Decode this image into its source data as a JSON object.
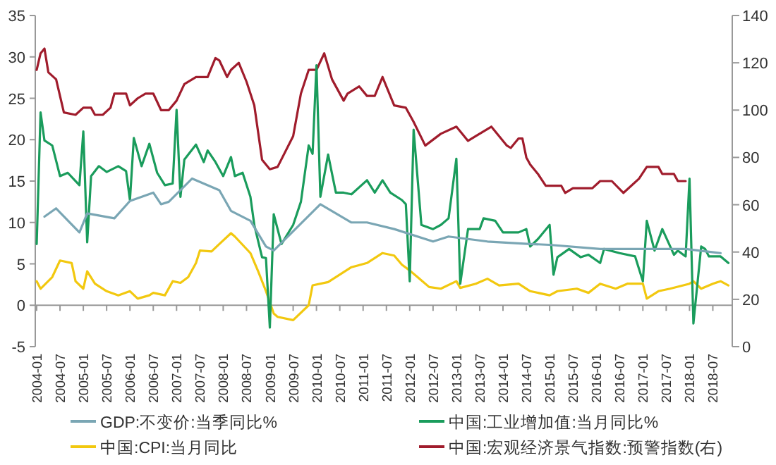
{
  "chart_data": {
    "type": "line",
    "legend": "bottom",
    "line_style": "solid",
    "marker": "none",
    "xlim": [
      "2004-01",
      "2018-12"
    ],
    "xticks": [
      "2004-01",
      "2004-07",
      "2005-01",
      "2005-07",
      "2006-01",
      "2006-07",
      "2007-01",
      "2007-07",
      "2008-01",
      "2008-07",
      "2009-01",
      "2009-07",
      "2010-01",
      "2010-07",
      "2011-01",
      "2011-07",
      "2012-01",
      "2012-07",
      "2013-01",
      "2013-07",
      "2014-01",
      "2014-07",
      "2015-01",
      "2015-07",
      "2016-01",
      "2016-07",
      "2017-01",
      "2017-07",
      "2018-01",
      "2018-07"
    ],
    "ylim": [
      -5,
      35
    ],
    "yticks": [
      -5,
      0,
      5,
      10,
      15,
      20,
      25,
      30,
      35
    ],
    "y2lim": [
      0,
      140
    ],
    "y2ticks": [
      0,
      20,
      40,
      60,
      80,
      100,
      120,
      140
    ],
    "series": [
      {
        "name": "GDP:不变价:当季同比%",
        "color": "#7aa6b4",
        "x": [
          "2004-03",
          "2004-06",
          "2004-12",
          "2005-02",
          "2005-09",
          "2006-01",
          "2006-07",
          "2006-09",
          "2006-11",
          "2007-05",
          "2007-12",
          "2008-03",
          "2008-08",
          "2008-12",
          "2009-02",
          "2010-02",
          "2010-10",
          "2011-02",
          "2011-09",
          "2012-07",
          "2012-11",
          "2013-09",
          "2014-08",
          "2015-01",
          "2016-02",
          "2017-12",
          "2018-09"
        ],
        "values": [
          10.7,
          11.7,
          8.8,
          11.1,
          10.5,
          12.6,
          13.6,
          12.2,
          12.5,
          15.3,
          13.9,
          11.4,
          10.2,
          7.1,
          6.6,
          12.2,
          10.0,
          10.0,
          9.2,
          7.7,
          8.3,
          7.7,
          7.4,
          7.3,
          6.8,
          6.8,
          6.3
        ]
      },
      {
        "name": "中国:工业增加值:当月同比%",
        "color": "#1a9c5c",
        "x": [
          "2004-01",
          "2004-02",
          "2004-03",
          "2004-05",
          "2004-07",
          "2004-09",
          "2004-12",
          "2005-01",
          "2005-02",
          "2005-03",
          "2005-05",
          "2005-07",
          "2005-10",
          "2005-12",
          "2006-01",
          "2006-02",
          "2006-04",
          "2006-06",
          "2006-08",
          "2006-10",
          "2006-12",
          "2007-01",
          "2007-02",
          "2007-03",
          "2007-06",
          "2007-08",
          "2007-09",
          "2007-11",
          "2008-01",
          "2008-03",
          "2008-04",
          "2008-06",
          "2008-08",
          "2008-09",
          "2008-11",
          "2008-12",
          "2009-01",
          "2009-02",
          "2009-04",
          "2009-07",
          "2009-09",
          "2009-11",
          "2009-12",
          "2010-01",
          "2010-02",
          "2010-04",
          "2010-06",
          "2010-08",
          "2010-10",
          "2011-02",
          "2011-04",
          "2011-06",
          "2011-08",
          "2011-11",
          "2011-12",
          "2012-01",
          "2012-02",
          "2012-04",
          "2012-07",
          "2012-09",
          "2012-11",
          "2013-01",
          "2013-02",
          "2013-04",
          "2013-07",
          "2013-08",
          "2013-11",
          "2014-01",
          "2014-05",
          "2014-07",
          "2014-08",
          "2014-10",
          "2015-01",
          "2015-02",
          "2015-03",
          "2015-06",
          "2015-09",
          "2015-11",
          "2016-02",
          "2016-03",
          "2016-07",
          "2016-11",
          "2017-01",
          "2017-02",
          "2017-04",
          "2017-06",
          "2017-09",
          "2017-10",
          "2017-12",
          "2018-01",
          "2018-02",
          "2018-04",
          "2018-05",
          "2018-06",
          "2018-09",
          "2018-11"
        ],
        "values": [
          7.4,
          23.3,
          19.9,
          19.3,
          15.6,
          16.0,
          14.5,
          21.0,
          7.6,
          15.6,
          16.8,
          16.1,
          16.8,
          16.2,
          12.7,
          20.2,
          16.8,
          19.5,
          16.0,
          14.5,
          14.7,
          23.6,
          13.1,
          17.6,
          19.4,
          17.3,
          18.7,
          17.3,
          15.6,
          17.9,
          15.6,
          16.0,
          13.1,
          9.7,
          5.8,
          5.7,
          -2.7,
          11.0,
          7.4,
          9.7,
          12.5,
          19.3,
          18.3,
          29.0,
          13.1,
          18.2,
          13.6,
          13.6,
          13.4,
          15.1,
          13.6,
          15.1,
          13.6,
          12.7,
          12.2,
          2.9,
          21.2,
          9.7,
          9.2,
          9.7,
          10.5,
          17.7,
          2.6,
          9.2,
          9.2,
          10.5,
          10.2,
          8.8,
          8.8,
          9.2,
          7.1,
          8.0,
          9.7,
          3.7,
          5.8,
          6.8,
          5.8,
          6.1,
          5.1,
          6.8,
          6.3,
          5.9,
          2.9,
          10.2,
          6.6,
          9.2,
          6.1,
          6.6,
          5.9,
          15.3,
          -2.2,
          7.1,
          6.8,
          5.9,
          5.9,
          5.1
        ]
      },
      {
        "name": "中国:CPI:当月同比",
        "color": "#f2c80f",
        "x": [
          "2004-01",
          "2004-02",
          "2004-05",
          "2004-07",
          "2004-10",
          "2004-11",
          "2005-01",
          "2005-02",
          "2005-04",
          "2005-07",
          "2005-10",
          "2006-01",
          "2006-03",
          "2006-06",
          "2006-07",
          "2006-10",
          "2006-12",
          "2007-02",
          "2007-04",
          "2007-06",
          "2007-07",
          "2007-10",
          "2007-12",
          "2008-03",
          "2008-04",
          "2008-08",
          "2008-10",
          "2008-12",
          "2009-02",
          "2009-03",
          "2009-07",
          "2009-11",
          "2009-12",
          "2010-04",
          "2010-10",
          "2011-02",
          "2011-06",
          "2011-09",
          "2011-11",
          "2012-01",
          "2012-03",
          "2012-06",
          "2012-09",
          "2013-01",
          "2013-02",
          "2013-06",
          "2013-09",
          "2013-12",
          "2014-05",
          "2014-08",
          "2015-01",
          "2015-03",
          "2015-08",
          "2015-11",
          "2016-02",
          "2016-06",
          "2016-09",
          "2017-01",
          "2017-02",
          "2017-05",
          "2017-08",
          "2018-01",
          "2018-02",
          "2018-04",
          "2018-07",
          "2018-09",
          "2018-11"
        ],
        "values": [
          2.9,
          2.0,
          3.4,
          5.4,
          5.1,
          2.9,
          2.0,
          4.1,
          2.6,
          1.7,
          1.2,
          1.7,
          0.8,
          1.2,
          1.5,
          1.2,
          2.9,
          2.7,
          3.4,
          5.1,
          6.6,
          6.5,
          7.4,
          8.7,
          8.3,
          6.3,
          4.1,
          1.7,
          -1.0,
          -1.4,
          -1.8,
          0.0,
          2.4,
          2.8,
          4.6,
          5.1,
          6.3,
          6.0,
          4.9,
          4.2,
          3.4,
          2.2,
          2.0,
          2.9,
          2.1,
          2.6,
          3.2,
          2.4,
          2.6,
          1.7,
          1.2,
          1.7,
          2.0,
          1.5,
          2.6,
          2.0,
          2.6,
          2.6,
          0.8,
          1.7,
          2.0,
          2.6,
          2.9,
          2.0,
          2.6,
          2.9,
          2.4
        ]
      },
      {
        "name": "中国:宏观经济景气指数:预警指数(右)",
        "color": "#a01c2c",
        "axis": "y2",
        "x": [
          "2004-01",
          "2004-02",
          "2004-03",
          "2004-04",
          "2004-06",
          "2004-08",
          "2004-11",
          "2005-01",
          "2005-03",
          "2005-04",
          "2005-06",
          "2005-08",
          "2005-09",
          "2005-12",
          "2006-01",
          "2006-03",
          "2006-05",
          "2006-07",
          "2006-09",
          "2006-11",
          "2007-01",
          "2007-03",
          "2007-06",
          "2007-09",
          "2007-11",
          "2007-12",
          "2008-02",
          "2008-03",
          "2008-05",
          "2008-07",
          "2008-09",
          "2008-11",
          "2009-01",
          "2009-03",
          "2009-07",
          "2009-09",
          "2009-11",
          "2010-01",
          "2010-03",
          "2010-05",
          "2010-08",
          "2010-09",
          "2010-12",
          "2011-02",
          "2011-04",
          "2011-06",
          "2011-09",
          "2011-12",
          "2012-02",
          "2012-05",
          "2012-09",
          "2013-01",
          "2013-04",
          "2013-06",
          "2013-10",
          "2014-02",
          "2014-03",
          "2014-05",
          "2014-06",
          "2014-07",
          "2014-08",
          "2014-10",
          "2014-12",
          "2015-04",
          "2015-05",
          "2015-07",
          "2015-12",
          "2016-02",
          "2016-05",
          "2016-08",
          "2016-12",
          "2017-02",
          "2017-05",
          "2017-06",
          "2017-09",
          "2017-10",
          "2017-12"
        ],
        "values": [
          117,
          124,
          126,
          116,
          113,
          99,
          98,
          101,
          101,
          98,
          98,
          101,
          107,
          107,
          102,
          105,
          107,
          107,
          100,
          100,
          104,
          111,
          114,
          114,
          122,
          121,
          114,
          117,
          120,
          112,
          102,
          79,
          75,
          76,
          89,
          107,
          117,
          117,
          124,
          113,
          104,
          107,
          110,
          106,
          106,
          114,
          102,
          101,
          95,
          85,
          90,
          93,
          87,
          89,
          93,
          85,
          84,
          88,
          88,
          80,
          77,
          73,
          68,
          68,
          65,
          67,
          67,
          70,
          70,
          65,
          71,
          76,
          76,
          73,
          73,
          70,
          70
        ]
      }
    ]
  }
}
